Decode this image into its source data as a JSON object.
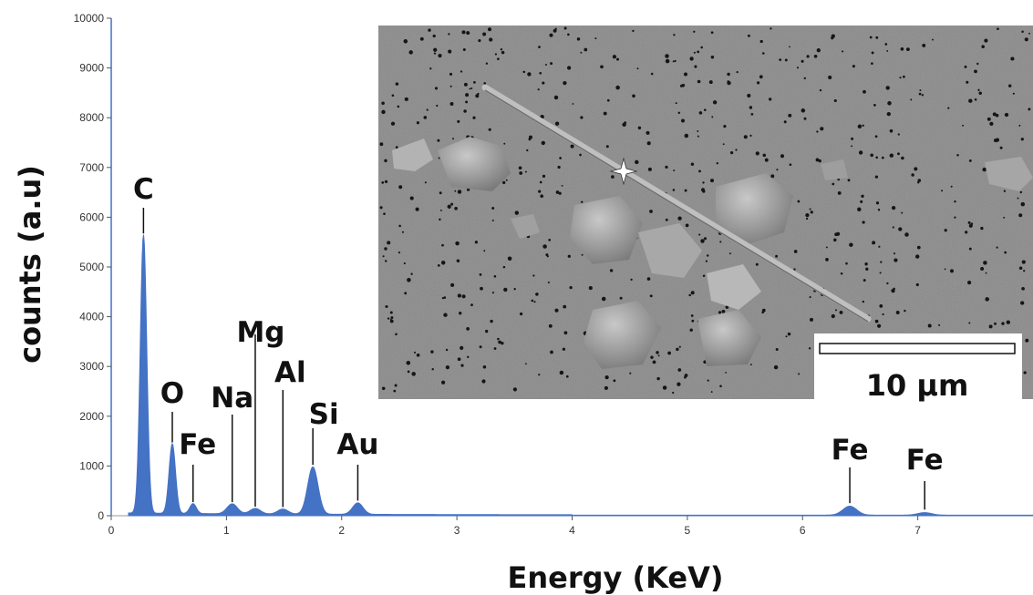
{
  "chart_data": {
    "type": "area",
    "xlabel": "Energy (KeV)",
    "ylabel": "counts (a.u)",
    "xlim": [
      0,
      8
    ],
    "ylim": [
      0,
      10000
    ],
    "x_ticks": [
      "0",
      "1",
      "2",
      "3",
      "4",
      "5",
      "6",
      "7"
    ],
    "y_ticks": [
      "0",
      "1000",
      "2000",
      "3000",
      "4000",
      "5000",
      "6000",
      "7000",
      "8000",
      "9000",
      "10000"
    ],
    "series": [
      {
        "color": "#4472c4",
        "peaks": [
          {
            "x": 0.28,
            "y": 5600
          },
          {
            "x": 0.53,
            "y": 1400
          },
          {
            "x": 0.71,
            "y": 200
          },
          {
            "x": 1.05,
            "y": 200
          },
          {
            "x": 1.25,
            "y": 110
          },
          {
            "x": 1.49,
            "y": 100
          },
          {
            "x": 1.75,
            "y": 950
          },
          {
            "x": 2.14,
            "y": 230
          },
          {
            "x": 6.41,
            "y": 180
          },
          {
            "x": 7.06,
            "y": 50
          }
        ]
      }
    ],
    "annotations": [
      {
        "label": "C",
        "x": 0.28
      },
      {
        "label": "O",
        "x": 0.53
      },
      {
        "label": "Fe",
        "x": 0.71
      },
      {
        "label": "Na",
        "x": 1.05
      },
      {
        "label": "Mg",
        "x": 1.25
      },
      {
        "label": "Al",
        "x": 1.49
      },
      {
        "label": "Si",
        "x": 1.75
      },
      {
        "label": "Au",
        "x": 2.14
      },
      {
        "label": "Fe",
        "x": 6.41
      },
      {
        "label": "Fe",
        "x": 7.06
      }
    ],
    "inset": {
      "scale_bar": "10 μm"
    }
  }
}
